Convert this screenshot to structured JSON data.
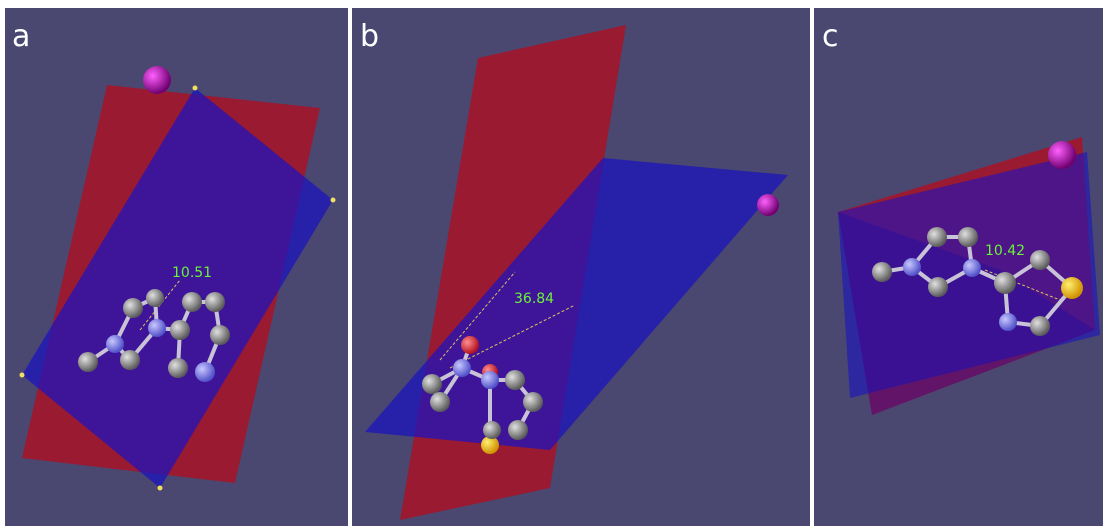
{
  "panels": [
    {
      "label": "a",
      "angle": "10.51"
    },
    {
      "label": "b",
      "angle": "36.84"
    },
    {
      "label": "c",
      "angle": "10.42"
    }
  ]
}
